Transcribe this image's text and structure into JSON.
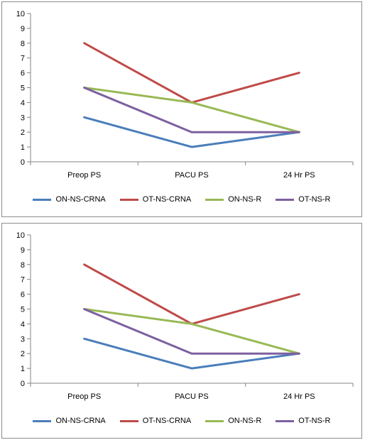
{
  "chart_data": [
    {
      "type": "line",
      "title": "",
      "xlabel": "",
      "ylabel": "",
      "categories": [
        "Preop PS",
        "PACU PS",
        "24 Hr PS"
      ],
      "ylim": [
        0,
        10
      ],
      "yticks": [
        0,
        1,
        2,
        3,
        4,
        5,
        6,
        7,
        8,
        9,
        10
      ],
      "grid": false,
      "legend_position": "bottom",
      "series": [
        {
          "name": "ON-NS-CRNA",
          "values": [
            3,
            1,
            2
          ],
          "color": "#4a7ebb"
        },
        {
          "name": "OT-NS-CRNA",
          "values": [
            8,
            4,
            6
          ],
          "color": "#be4b48"
        },
        {
          "name": "ON-NS-R",
          "values": [
            5,
            4,
            2
          ],
          "color": "#98b954"
        },
        {
          "name": "OT-NS-R",
          "values": [
            5,
            2,
            2
          ],
          "color": "#7d60a0"
        }
      ]
    },
    {
      "type": "line",
      "title": "",
      "xlabel": "",
      "ylabel": "",
      "categories": [
        "Preop PS",
        "PACU PS",
        "24 Hr PS"
      ],
      "ylim": [
        0,
        10
      ],
      "yticks": [
        0,
        1,
        2,
        3,
        4,
        5,
        6,
        7,
        8,
        9,
        10
      ],
      "grid": false,
      "legend_position": "bottom",
      "series": [
        {
          "name": "ON-NS-CRNA",
          "values": [
            3,
            1,
            2
          ],
          "color": "#4a7ebb"
        },
        {
          "name": "OT-NS-CRNA",
          "values": [
            8,
            4,
            6
          ],
          "color": "#be4b48"
        },
        {
          "name": "ON-NS-R",
          "values": [
            5,
            4,
            2
          ],
          "color": "#98b954"
        },
        {
          "name": "OT-NS-R",
          "values": [
            5,
            2,
            2
          ],
          "color": "#7d60a0"
        }
      ]
    }
  ]
}
